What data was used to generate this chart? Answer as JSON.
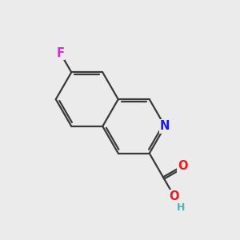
{
  "background_color": "#ebebeb",
  "bond_color": "#3a3a3a",
  "bond_width": 1.6,
  "atom_colors": {
    "N": "#1a1aee",
    "O": "#ee1a1a",
    "F": "#cc33cc",
    "H": "#5aadad",
    "C": "#3a3a3a"
  },
  "font_size_atoms": 10.5,
  "font_size_H": 9.0,
  "L": 1.3
}
